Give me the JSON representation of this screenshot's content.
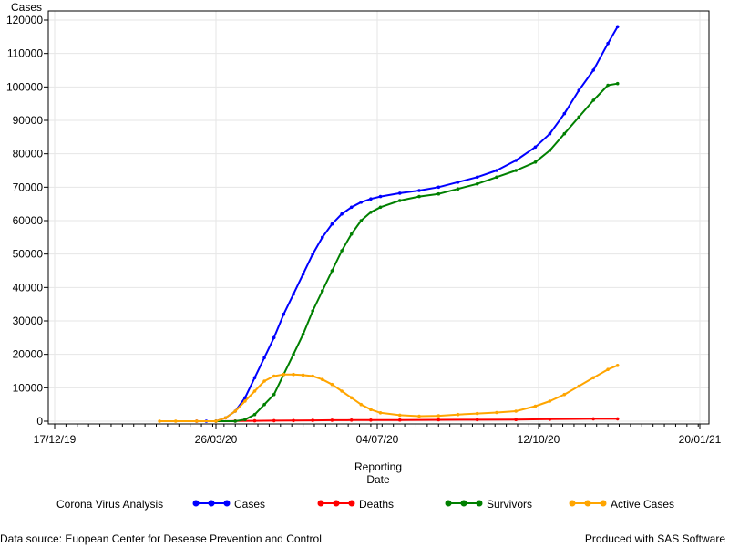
{
  "footer": {
    "left": "Data source: Euopean Center for Desease Prevention and Control",
    "right": "Produced with SAS Software"
  },
  "legend": {
    "title": "Corona Virus Analysis"
  },
  "chart_data": {
    "type": "line",
    "ylabel": "Cases",
    "xlabel_lines": [
      "Reporting",
      "Date"
    ],
    "ylim": [
      0,
      120000
    ],
    "y_ticks": [
      0,
      10000,
      20000,
      30000,
      40000,
      50000,
      60000,
      70000,
      80000,
      90000,
      100000,
      110000,
      120000
    ],
    "y_tick_labels": [
      "0",
      "10000",
      "20000",
      "30000",
      "40000",
      "50000",
      "60000",
      "70000",
      "80000",
      "90000",
      "100000",
      "110000",
      "120000"
    ],
    "xlim": [
      "2019-12-17",
      "2021-01-20"
    ],
    "x_ticks": [
      "2019-12-17",
      "2020-03-26",
      "2020-07-04",
      "2020-10-12",
      "2021-01-20"
    ],
    "x_tick_labels": [
      "17/12/19",
      "26/03/20",
      "04/07/20",
      "12/10/20",
      "20/01/21"
    ],
    "grid": true,
    "legend_position": "bottom",
    "series": [
      {
        "name": "Cases",
        "color": "#0000ff",
        "x": [
          "2020-03-14",
          "2020-03-20",
          "2020-03-26",
          "2020-04-01",
          "2020-04-07",
          "2020-04-13",
          "2020-04-19",
          "2020-04-25",
          "2020-05-01",
          "2020-05-07",
          "2020-05-13",
          "2020-05-19",
          "2020-05-25",
          "2020-05-31",
          "2020-06-06",
          "2020-06-12",
          "2020-06-18",
          "2020-06-24",
          "2020-06-30",
          "2020-07-06",
          "2020-07-18",
          "2020-07-30",
          "2020-08-11",
          "2020-08-23",
          "2020-09-04",
          "2020-09-16",
          "2020-09-28",
          "2020-10-10",
          "2020-10-19",
          "2020-10-28",
          "2020-11-06",
          "2020-11-15",
          "2020-11-24",
          "2020-11-30"
        ],
        "y": [
          0,
          0,
          0,
          1000,
          3000,
          7000,
          13000,
          19000,
          25000,
          32000,
          38000,
          44000,
          50000,
          55000,
          59000,
          62000,
          64000,
          65500,
          66500,
          67200,
          68200,
          69000,
          70000,
          71500,
          73000,
          75000,
          78000,
          82000,
          86000,
          92000,
          99000,
          105000,
          113000,
          118000
        ]
      },
      {
        "name": "Deaths",
        "color": "#ff0000",
        "x": [
          "2020-03-14",
          "2020-03-26",
          "2020-04-07",
          "2020-04-19",
          "2020-05-01",
          "2020-05-13",
          "2020-05-25",
          "2020-06-06",
          "2020-06-18",
          "2020-06-30",
          "2020-07-18",
          "2020-08-11",
          "2020-09-04",
          "2020-09-28",
          "2020-10-19",
          "2020-11-15",
          "2020-11-30"
        ],
        "y": [
          0,
          0,
          50,
          100,
          150,
          200,
          250,
          300,
          320,
          340,
          360,
          400,
          450,
          500,
          600,
          700,
          700
        ]
      },
      {
        "name": "Survivors",
        "color": "#008000",
        "x": [
          "2020-03-26",
          "2020-04-07",
          "2020-04-13",
          "2020-04-19",
          "2020-04-25",
          "2020-05-01",
          "2020-05-07",
          "2020-05-13",
          "2020-05-19",
          "2020-05-25",
          "2020-05-31",
          "2020-06-06",
          "2020-06-12",
          "2020-06-18",
          "2020-06-24",
          "2020-06-30",
          "2020-07-06",
          "2020-07-18",
          "2020-07-30",
          "2020-08-11",
          "2020-08-23",
          "2020-09-04",
          "2020-09-16",
          "2020-09-28",
          "2020-10-10",
          "2020-10-19",
          "2020-10-28",
          "2020-11-06",
          "2020-11-15",
          "2020-11-24",
          "2020-11-30"
        ],
        "y": [
          0,
          0,
          500,
          2000,
          5000,
          8000,
          14000,
          20000,
          26000,
          33000,
          39000,
          45000,
          51000,
          56000,
          60000,
          62500,
          64000,
          66000,
          67200,
          68000,
          69500,
          71000,
          73000,
          75000,
          77500,
          81000,
          86000,
          91000,
          96000,
          100500,
          101000
        ]
      },
      {
        "name": "Active Cases",
        "color": "#ffa500",
        "x": [
          "2020-02-20",
          "2020-03-01",
          "2020-03-14",
          "2020-03-26",
          "2020-04-01",
          "2020-04-07",
          "2020-04-13",
          "2020-04-19",
          "2020-04-25",
          "2020-05-01",
          "2020-05-07",
          "2020-05-13",
          "2020-05-19",
          "2020-05-25",
          "2020-05-31",
          "2020-06-06",
          "2020-06-12",
          "2020-06-18",
          "2020-06-24",
          "2020-06-30",
          "2020-07-06",
          "2020-07-18",
          "2020-07-30",
          "2020-08-11",
          "2020-08-23",
          "2020-09-04",
          "2020-09-16",
          "2020-09-28",
          "2020-10-10",
          "2020-10-19",
          "2020-10-28",
          "2020-11-06",
          "2020-11-15",
          "2020-11-24",
          "2020-11-30"
        ],
        "y": [
          0,
          0,
          0,
          0,
          1000,
          3000,
          6000,
          9000,
          12000,
          13500,
          14000,
          14000,
          13800,
          13500,
          12500,
          11000,
          9000,
          7000,
          5000,
          3500,
          2500,
          1800,
          1500,
          1600,
          2000,
          2300,
          2600,
          3000,
          4500,
          6000,
          8000,
          10500,
          13000,
          15500,
          16700
        ]
      }
    ]
  }
}
